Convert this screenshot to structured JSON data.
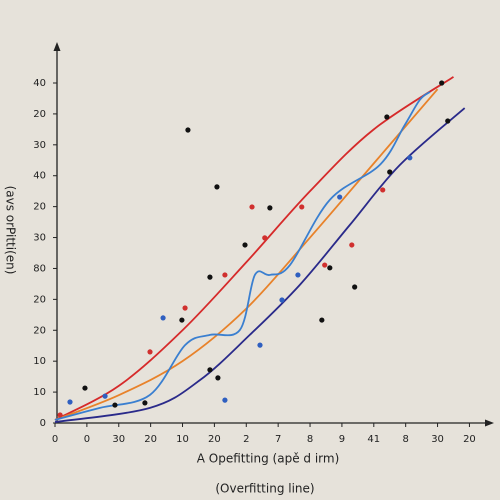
{
  "chart_data": {
    "type": "line",
    "x_label": "A Opefitting (apě d irm)",
    "y_label": "(avs orPitti(en)",
    "caption": "(Overfitting line)",
    "xlim": [
      0,
      13.3
    ],
    "ylim": [
      0,
      11
    ],
    "xticks": [
      0,
      {
        "value": 1,
        "label": "0"
      },
      {
        "value": 2,
        "label": "30"
      },
      {
        "value": 3,
        "label": "20"
      },
      {
        "value": 4,
        "label": "10"
      },
      {
        "value": 5,
        "label": "20"
      },
      {
        "value": 6,
        "label": "2"
      },
      7,
      8,
      9,
      {
        "value": 10,
        "label": "41"
      },
      {
        "value": 11,
        "label": "8"
      },
      {
        "value": 12,
        "label": "30"
      },
      {
        "value": 13,
        "label": "20"
      }
    ],
    "yticks": [
      0,
      {
        "value": 1,
        "label": "10"
      },
      {
        "value": 2,
        "label": "10"
      },
      {
        "value": 3,
        "label": "20"
      },
      {
        "value": 4,
        "label": "20"
      },
      {
        "value": 5,
        "label": "80"
      },
      {
        "value": 6,
        "label": "30"
      },
      {
        "value": 7,
        "label": "20"
      },
      {
        "value": 8,
        "label": "40"
      },
      {
        "value": 9,
        "label": "30"
      },
      {
        "value": 10,
        "label": "20"
      },
      {
        "value": 11,
        "label": "40"
      }
    ],
    "grid": false,
    "series": [
      {
        "mode": "lines",
        "color": "#d62a2a",
        "x": [
          0,
          2,
          4,
          6,
          8,
          10,
          12.5
        ],
        "values": [
          0.1,
          1.2,
          3.0,
          5.2,
          7.5,
          9.5,
          11.2
        ]
      },
      {
        "mode": "lines",
        "color": "#e8822a",
        "x": [
          0,
          2,
          4,
          6,
          8,
          10,
          12
        ],
        "values": [
          0.1,
          0.9,
          2.0,
          3.7,
          6.0,
          8.4,
          10.8
        ]
      },
      {
        "mode": "lines",
        "color": "#3a7fd0",
        "x": [
          0,
          1.41,
          2.98,
          4.08,
          4.86,
          5.8,
          6.27,
          6.74,
          7.37,
          8.62,
          10.19,
          10.97,
          11.44,
          11.76
        ],
        "values": [
          0.1,
          0.49,
          0.91,
          2.52,
          2.85,
          3.01,
          4.79,
          4.79,
          5.11,
          7.22,
          8.35,
          9.64,
          10.45,
          10.71
        ]
      },
      {
        "mode": "lines",
        "color": "#2a2a8a",
        "x": [
          0,
          2.98,
          4.55,
          6.11,
          7.68,
          9.25,
          10.82,
          12.85
        ],
        "values": [
          0.03,
          0.49,
          1.39,
          2.85,
          4.47,
          6.41,
          8.35,
          10.19
        ]
      },
      {
        "mode": "markers",
        "color": "#111111",
        "x": [
          4.17,
          5.08,
          6.74,
          5.96,
          4.86,
          3.98,
          8.62,
          8.37,
          9.4,
          10.5,
          10.41,
          12.32,
          12.13,
          0.94,
          1.88,
          2.82,
          4.86,
          5.11
        ],
        "values": [
          9.48,
          7.64,
          6.96,
          5.76,
          4.72,
          3.33,
          5.02,
          3.33,
          4.4,
          8.12,
          9.9,
          9.77,
          11.0,
          1.13,
          0.58,
          0.65,
          1.72,
          1.46
        ]
      },
      {
        "mode": "markers",
        "color": "#d0302e",
        "x": [
          0.16,
          2.98,
          5.33,
          4.08,
          6.18,
          7.74,
          9.31,
          10.28,
          8.46,
          6.58
        ],
        "values": [
          0.26,
          2.3,
          4.79,
          3.72,
          6.99,
          6.99,
          5.76,
          7.54,
          5.11,
          5.99
        ]
      },
      {
        "mode": "markers",
        "color": "#2f5fc0",
        "x": [
          0.47,
          1.57,
          3.39,
          6.43,
          7.62,
          8.93,
          11.13,
          5.33,
          7.12
        ],
        "values": [
          0.68,
          0.87,
          3.4,
          2.52,
          4.79,
          7.31,
          8.58,
          0.74,
          3.98
        ]
      }
    ]
  }
}
